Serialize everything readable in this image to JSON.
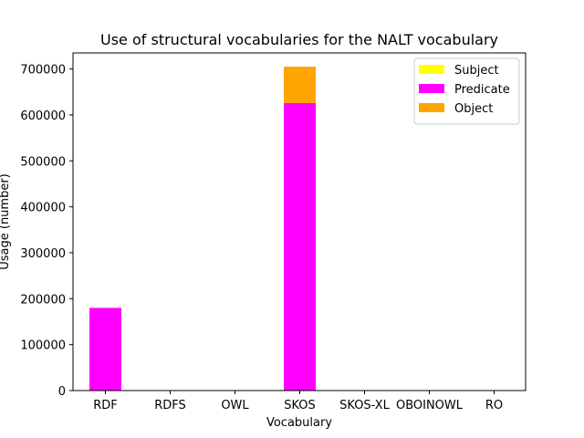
{
  "chart_data": {
    "type": "bar",
    "stacked": true,
    "title": "Use of structural vocabularies for the NALT vocabulary",
    "xlabel": "Vocabulary",
    "ylabel": "Usage (number)",
    "categories": [
      "RDF",
      "RDFS",
      "OWL",
      "SKOS",
      "SKOS-XL",
      "OBOINOWL",
      "RO"
    ],
    "ylim": [
      0,
      735000
    ],
    "yticks": [
      0,
      100000,
      200000,
      300000,
      400000,
      500000,
      600000,
      700000
    ],
    "legend_position": "top-right",
    "grid": false,
    "series": [
      {
        "name": "Subject",
        "color": "#ffff00",
        "values": [
          0,
          0,
          0,
          0,
          0,
          0,
          0
        ]
      },
      {
        "name": "Predicate",
        "color": "#ff00ff",
        "values": [
          180000,
          0,
          0,
          626000,
          0,
          0,
          0
        ]
      },
      {
        "name": "Object",
        "color": "#ffa500",
        "values": [
          0,
          0,
          0,
          79000,
          0,
          0,
          0
        ]
      }
    ]
  }
}
